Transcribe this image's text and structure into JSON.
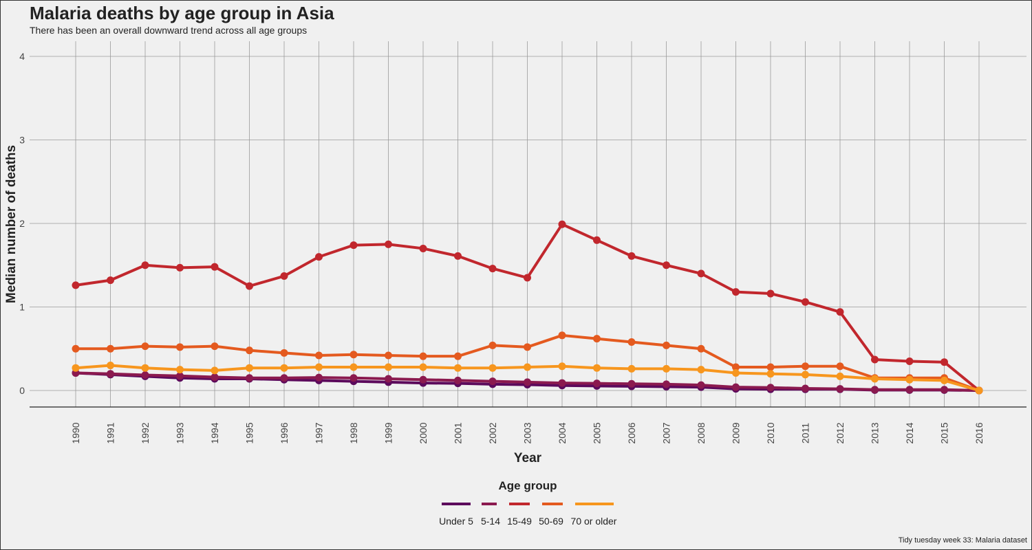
{
  "title": "Malaria deaths by age group in Asia",
  "subtitle": "There has been an overall downward trend across all age groups",
  "caption": "Tidy tuesday week 33: Malaria dataset",
  "chart_data": {
    "type": "line",
    "title": "Malaria deaths by age group in Asia",
    "subtitle": "There has been an overall downward trend across all age groups",
    "xlabel": "Year",
    "ylabel": "Median number of deaths",
    "ylim": [
      0,
      4
    ],
    "yticks": [
      0,
      1,
      2,
      3,
      4
    ],
    "grid": true,
    "legend_title": "Age group",
    "legend_position": "bottom",
    "x": [
      1990,
      1991,
      1992,
      1993,
      1994,
      1995,
      1996,
      1997,
      1998,
      1999,
      2000,
      2001,
      2002,
      2003,
      2004,
      2005,
      2006,
      2007,
      2008,
      2009,
      2010,
      2011,
      2012,
      2013,
      2014,
      2015,
      2016
    ],
    "series": [
      {
        "name": "Under 5",
        "color": "#5c0a5c",
        "values": [
          0.21,
          0.19,
          0.17,
          0.15,
          0.14,
          0.14,
          0.13,
          0.12,
          0.11,
          0.1,
          0.09,
          0.085,
          0.075,
          0.07,
          0.06,
          0.055,
          0.05,
          0.045,
          0.04,
          0.02,
          0.015,
          0.015,
          0.015,
          0.005,
          0.005,
          0.005,
          0.0
        ]
      },
      {
        "name": "5-14",
        "color": "#8b1a4f",
        "values": [
          0.21,
          0.2,
          0.185,
          0.175,
          0.16,
          0.15,
          0.15,
          0.155,
          0.15,
          0.14,
          0.13,
          0.12,
          0.11,
          0.1,
          0.09,
          0.085,
          0.08,
          0.075,
          0.065,
          0.04,
          0.035,
          0.025,
          0.02,
          0.01,
          0.01,
          0.01,
          0.0
        ]
      },
      {
        "name": "15-49",
        "color": "#c1272d",
        "values": [
          1.26,
          1.32,
          1.5,
          1.47,
          1.48,
          1.25,
          1.37,
          1.6,
          1.74,
          1.75,
          1.7,
          1.61,
          1.46,
          1.35,
          1.99,
          1.8,
          1.61,
          1.5,
          1.4,
          1.18,
          1.16,
          1.06,
          0.94,
          0.37,
          0.35,
          0.34,
          0.0
        ]
      },
      {
        "name": "50-69",
        "color": "#e45a1f",
        "values": [
          0.5,
          0.5,
          0.53,
          0.52,
          0.53,
          0.48,
          0.45,
          0.42,
          0.43,
          0.42,
          0.41,
          0.41,
          0.54,
          0.52,
          0.66,
          0.62,
          0.58,
          0.54,
          0.5,
          0.28,
          0.28,
          0.29,
          0.29,
          0.15,
          0.15,
          0.15,
          0.0
        ]
      },
      {
        "name": "70 or older",
        "color": "#f7961e",
        "values": [
          0.27,
          0.3,
          0.27,
          0.25,
          0.24,
          0.27,
          0.27,
          0.28,
          0.28,
          0.28,
          0.28,
          0.27,
          0.27,
          0.28,
          0.29,
          0.27,
          0.26,
          0.26,
          0.25,
          0.21,
          0.2,
          0.19,
          0.17,
          0.14,
          0.13,
          0.12,
          0.0
        ]
      }
    ]
  }
}
